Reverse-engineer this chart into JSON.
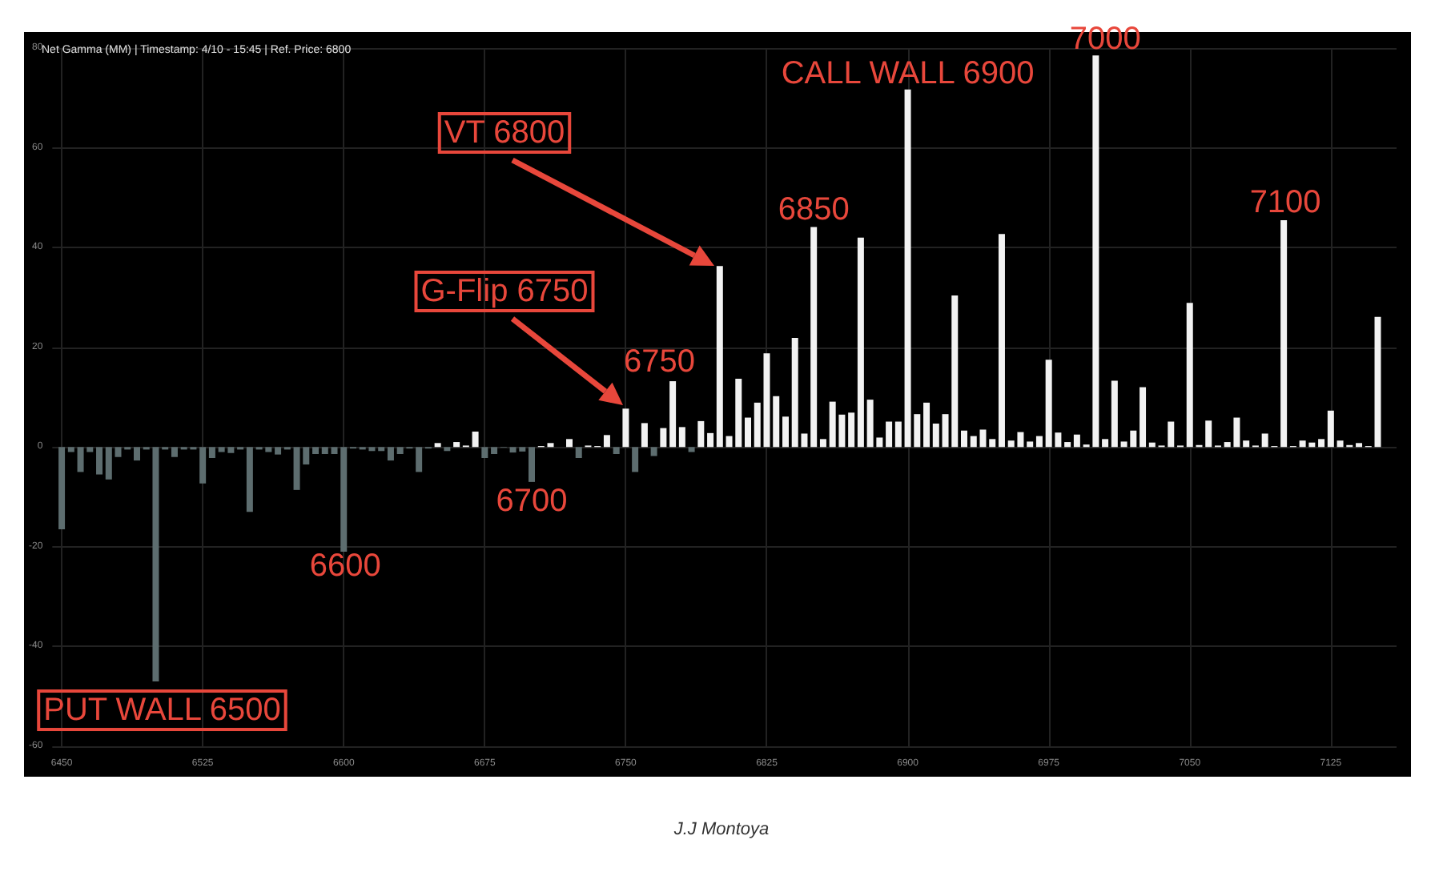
{
  "chart_data": {
    "type": "bar",
    "title": "Net Gamma (MM) | Timestamp: 4/10 - 15:45 | Ref. Price: 6800",
    "x": [
      6450,
      6455,
      6460,
      6465,
      6470,
      6475,
      6480,
      6485,
      6490,
      6495,
      6500,
      6505,
      6510,
      6515,
      6520,
      6525,
      6530,
      6535,
      6540,
      6545,
      6550,
      6555,
      6560,
      6565,
      6570,
      6575,
      6580,
      6585,
      6590,
      6595,
      6600,
      6605,
      6610,
      6615,
      6620,
      6625,
      6630,
      6635,
      6640,
      6645,
      6650,
      6655,
      6660,
      6665,
      6670,
      6675,
      6680,
      6685,
      6690,
      6695,
      6700,
      6705,
      6710,
      6715,
      6720,
      6725,
      6730,
      6735,
      6740,
      6745,
      6750,
      6755,
      6760,
      6765,
      6770,
      6775,
      6780,
      6785,
      6790,
      6795,
      6800,
      6805,
      6810,
      6815,
      6820,
      6825,
      6830,
      6835,
      6840,
      6845,
      6850,
      6855,
      6860,
      6865,
      6870,
      6875,
      6880,
      6885,
      6890,
      6895,
      6900,
      6905,
      6910,
      6915,
      6920,
      6925,
      6930,
      6935,
      6940,
      6945,
      6950,
      6955,
      6960,
      6965,
      6970,
      6975,
      6980,
      6985,
      6990,
      6995,
      7000,
      7005,
      7010,
      7015,
      7020,
      7025,
      7030,
      7035,
      7040,
      7045,
      7050,
      7055,
      7060,
      7065,
      7070,
      7075,
      7080,
      7085,
      7090,
      7095,
      7100,
      7105,
      7110,
      7115,
      7120,
      7125,
      7130,
      7135,
      7140,
      7145,
      7150
    ],
    "values": [
      -16.5,
      -1,
      -5,
      -1,
      -5.5,
      -6.5,
      -2,
      -0.5,
      -2.7,
      -0.5,
      -47,
      -0.5,
      -2,
      -0.5,
      -0.5,
      -7.3,
      -2.2,
      -1,
      -1.2,
      -0.5,
      -13,
      -0.5,
      -1,
      -1.5,
      -0.5,
      -8.6,
      -3.5,
      -1.4,
      -1.4,
      -1.4,
      -21,
      -0.3,
      -0.5,
      -0.8,
      -0.8,
      -2.7,
      -1.4,
      -0.3,
      -5,
      -0.3,
      0.8,
      -0.8,
      1,
      0.3,
      3.1,
      -2.2,
      -1.4,
      -0.1,
      -1.1,
      -0.9,
      -7,
      0.2,
      0.8,
      0,
      1.6,
      -2.2,
      0.3,
      0.2,
      2.4,
      -1.4,
      7.7,
      -5,
      4.8,
      -1.8,
      3.8,
      13.2,
      4,
      -1,
      5.2,
      2.8,
      36.3,
      2.2,
      13.7,
      5.9,
      8.9,
      18.8,
      10.2,
      6.1,
      21.9,
      2.7,
      44.1,
      1.6,
      9.1,
      6.5,
      6.9,
      42,
      9.5,
      1.9,
      5.1,
      5.1,
      71.7,
      6.6,
      8.9,
      4.7,
      6.6,
      30.4,
      3.3,
      2.2,
      3.5,
      1.6,
      42.7,
      1.3,
      3,
      1.1,
      2.2,
      17.5,
      2.9,
      1,
      2.5,
      0.5,
      78.5,
      1.6,
      13.3,
      1.1,
      3.3,
      12,
      0.9,
      0.3,
      5.1,
      0.3,
      28.9,
      0.4,
      5.3,
      0.3,
      1,
      5.9,
      1.3,
      0.3,
      2.7,
      0.2,
      45.5,
      0.2,
      1.3,
      0.9,
      1.6,
      7.3,
      1.3,
      0.4,
      0.8,
      0.2,
      26.1
    ],
    "colors": [
      "#5d6d6f",
      "#5d6d6f",
      "#5d6d6f",
      "#5d6d6f",
      "#5d6d6f",
      "#5d6d6f",
      "#5d6d6f",
      "#5d6d6f",
      "#5d6d6f",
      "#5d6d6f",
      "#5d6d6f",
      "#5d6d6f",
      "#5d6d6f",
      "#5d6d6f",
      "#5d6d6f",
      "#5d6d6f",
      "#5d6d6f",
      "#5d6d6f",
      "#5d6d6f",
      "#5d6d6f",
      "#5d6d6f",
      "#5d6d6f",
      "#5d6d6f",
      "#5d6d6f",
      "#5d6d6f",
      "#5d6d6f",
      "#5d6d6f",
      "#5d6d6f",
      "#5d6d6f",
      "#5d6d6f",
      "#5d6d6f",
      "#5d6d6f",
      "#5d6d6f",
      "#5d6d6f",
      "#5d6d6f",
      "#5d6d6f",
      "#5d6d6f",
      "#5d6d6f",
      "#5d6d6f",
      "#5d6d6f",
      "#f2f2f2",
      "#5d6d6f",
      "#f2f2f2",
      "#f2f2f2",
      "#f2f2f2",
      "#5d6d6f",
      "#5d6d6f",
      "#5d6d6f",
      "#5d6d6f",
      "#5d6d6f",
      "#5d6d6f",
      "#f2f2f2",
      "#f2f2f2",
      "#f2f2f2",
      "#f2f2f2",
      "#5d6d6f",
      "#f2f2f2",
      "#f2f2f2",
      "#f2f2f2",
      "#5d6d6f",
      "#f2f2f2",
      "#5d6d6f",
      "#f2f2f2",
      "#5d6d6f",
      "#f2f2f2",
      "#f2f2f2",
      "#f2f2f2",
      "#5d6d6f",
      "#f2f2f2",
      "#f2f2f2",
      "#f2f2f2",
      "#f2f2f2",
      "#f2f2f2",
      "#f2f2f2",
      "#f2f2f2",
      "#f2f2f2",
      "#f2f2f2",
      "#f2f2f2",
      "#f2f2f2",
      "#f2f2f2",
      "#f2f2f2",
      "#f2f2f2",
      "#f2f2f2",
      "#f2f2f2",
      "#f2f2f2",
      "#f2f2f2",
      "#f2f2f2",
      "#f2f2f2",
      "#f2f2f2",
      "#f2f2f2",
      "#f2f2f2",
      "#f2f2f2",
      "#f2f2f2",
      "#f2f2f2",
      "#f2f2f2",
      "#f2f2f2",
      "#f2f2f2",
      "#f2f2f2",
      "#f2f2f2",
      "#f2f2f2",
      "#f2f2f2",
      "#f2f2f2",
      "#f2f2f2",
      "#f2f2f2",
      "#f2f2f2",
      "#f2f2f2",
      "#f2f2f2",
      "#f2f2f2",
      "#f2f2f2",
      "#f2f2f2",
      "#f2f2f2",
      "#f2f2f2",
      "#f2f2f2",
      "#f2f2f2",
      "#f2f2f2",
      "#f2f2f2",
      "#f2f2f2",
      "#f2f2f2",
      "#f2f2f2",
      "#f2f2f2",
      "#f2f2f2",
      "#f2f2f2",
      "#f2f2f2",
      "#f2f2f2",
      "#f2f2f2",
      "#f2f2f2",
      "#f2f2f2",
      "#f2f2f2",
      "#f2f2f2",
      "#f2f2f2",
      "#f2f2f2",
      "#f2f2f2",
      "#f2f2f2",
      "#f2f2f2",
      "#f2f2f2",
      "#f2f2f2",
      "#f2f2f2",
      "#f2f2f2",
      "#f2f2f2",
      "#f2f2f2",
      "#f2f2f2"
    ],
    "xlim": [
      6445,
      7160
    ],
    "xticks": [
      6450,
      6525,
      6600,
      6675,
      6750,
      6825,
      6900,
      6975,
      7050,
      7125
    ],
    "ylim": [
      -60,
      80
    ],
    "yticks": [
      -60,
      -40,
      -20,
      0,
      20,
      40,
      60,
      80
    ],
    "grid": true,
    "annotations": [
      {
        "text": "PUT WALL 6500",
        "x": 6500,
        "y": -47
      },
      {
        "text": "6600",
        "x": 6600,
        "y": -21
      },
      {
        "text": "6700",
        "x": 6700,
        "y": -7
      },
      "G-Flip 6750",
      {
        "text": "6750",
        "x": 6750,
        "y": 7.7
      },
      "VT 6800",
      {
        "text": "6850",
        "x": 6850,
        "y": 44.1
      },
      {
        "text": "CALL WALL 6900",
        "x": 6900,
        "y": 71.7
      },
      {
        "text": "7000",
        "x": 7000,
        "y": 78.5
      },
      {
        "text": "7100",
        "x": 7100,
        "y": 45.5
      },
      "J.J Montoya"
    ]
  }
}
